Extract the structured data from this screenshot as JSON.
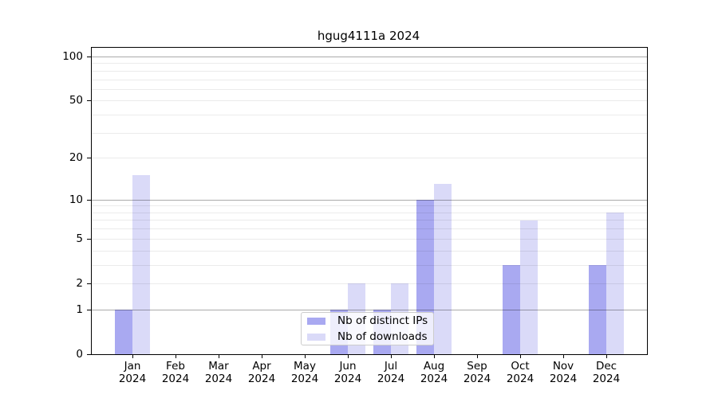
{
  "chart_data": {
    "type": "bar",
    "title": "hgug4111a 2024",
    "categories": [
      "Jan 2024",
      "Feb 2024",
      "Mar 2024",
      "Apr 2024",
      "May 2024",
      "Jun 2024",
      "Jul 2024",
      "Aug 2024",
      "Sep 2024",
      "Oct 2024",
      "Nov 2024",
      "Dec 2024"
    ],
    "x_tick_labels": [
      [
        "Jan",
        "2024"
      ],
      [
        "Feb",
        "2024"
      ],
      [
        "Mar",
        "2024"
      ],
      [
        "Apr",
        "2024"
      ],
      [
        "May",
        "2024"
      ],
      [
        "Jun",
        "2024"
      ],
      [
        "Jul",
        "2024"
      ],
      [
        "Aug",
        "2024"
      ],
      [
        "Sep",
        "2024"
      ],
      [
        "Oct",
        "2024"
      ],
      [
        "Nov",
        "2024"
      ],
      [
        "Dec",
        "2024"
      ]
    ],
    "series": [
      {
        "name": "Nb of distinct IPs",
        "slug": "distinct-ips",
        "color": "#a9a9f1",
        "values": [
          1,
          0,
          0,
          0,
          0,
          1,
          1,
          10,
          0,
          3,
          0,
          3
        ]
      },
      {
        "name": "Nb of downloads",
        "slug": "downloads",
        "color": "#dadaf8",
        "values": [
          15,
          0,
          0,
          0,
          0,
          2,
          2,
          13,
          0,
          7,
          0,
          8
        ]
      }
    ],
    "y_axis": {
      "scale": "log1p",
      "range": [
        0,
        100
      ],
      "ticks": [
        0,
        1,
        2,
        5,
        10,
        20,
        50,
        100
      ],
      "major_gridlines": [
        1,
        10,
        100
      ],
      "minor_gridlines": [
        2,
        3,
        4,
        5,
        6,
        7,
        8,
        9,
        20,
        30,
        40,
        50,
        60,
        70,
        80,
        90
      ]
    },
    "grid": true,
    "legend": {
      "position": "inside-bottom-center"
    },
    "colors": {
      "background": "#ffffff",
      "axis": "#000000",
      "major_grid": "#ababab",
      "minor_grid": "#ebebeb"
    }
  }
}
